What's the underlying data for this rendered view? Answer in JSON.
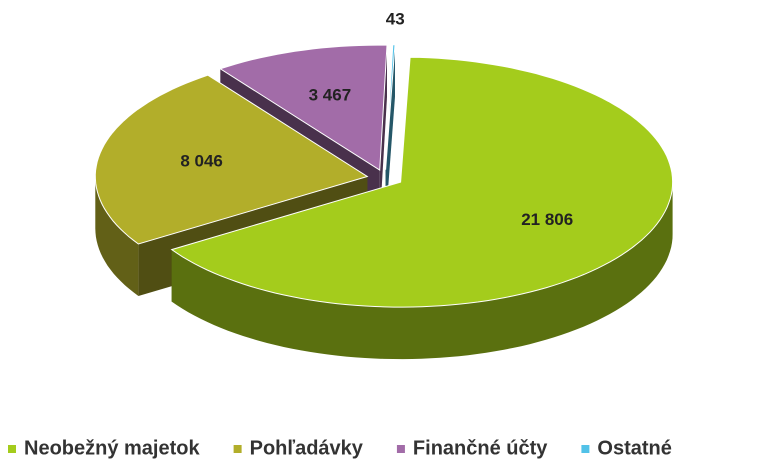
{
  "chart_data": {
    "type": "pie3d",
    "categories": [
      "Neobežný majetok",
      "Pohľadávky",
      "Finančné účty",
      "Ostatné"
    ],
    "values": [
      21806,
      8046,
      3467,
      43
    ],
    "value_labels": [
      "21 806",
      "8 046",
      "3 467",
      "43"
    ],
    "colors": [
      "#a4cc1c",
      "#b2ae2a",
      "#a26ca8",
      "#52c2e8"
    ],
    "legend": "bottom"
  }
}
